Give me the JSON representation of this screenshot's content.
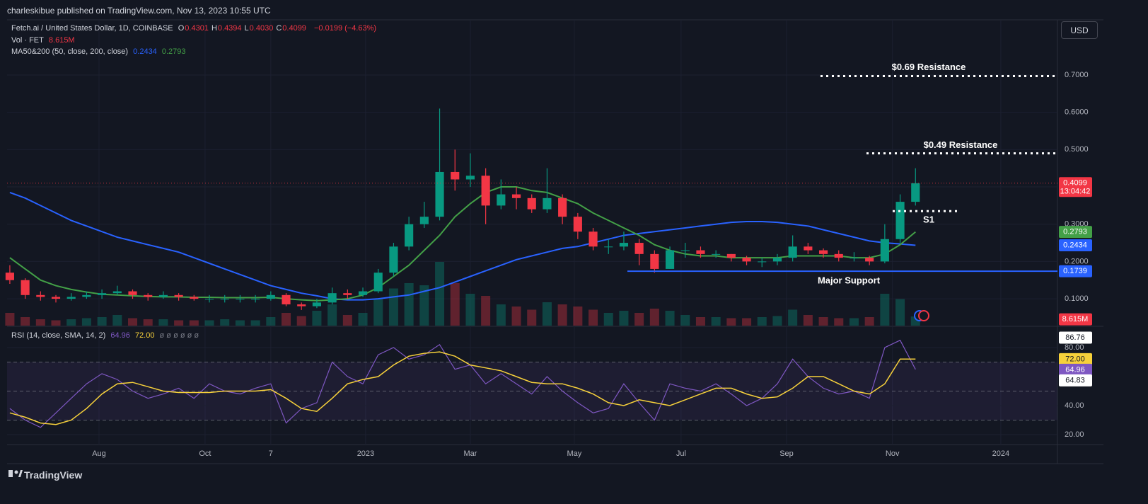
{
  "header": {
    "publisher": "charleskibue published on TradingView.com, Nov 13, 2023 10:55 UTC",
    "currency": "USD",
    "brand": "TradingView"
  },
  "legend": {
    "symbol": "Fetch.ai / United States Dollar, 1D, COINBASE",
    "ohlc": [
      {
        "key": "O",
        "value": "0.4301"
      },
      {
        "key": "H",
        "value": "0.4394"
      },
      {
        "key": "L",
        "value": "0.4030"
      },
      {
        "key": "C",
        "value": "0.4099"
      }
    ],
    "change": "−0.0199 (−4.63%)",
    "volume_label": "Vol · FET",
    "volume_value": "8.615M",
    "ma_label": "MA50&200 (50, close, 200, close)",
    "ma_values": [
      "0.2434",
      "0.2793"
    ],
    "rsi_label": "RSI (14, close, SMA, 14, 2)",
    "rsi_values": [
      "64.96",
      "72.00"
    ],
    "rsi_extra": "ø ø ø ø ø ø"
  },
  "chart_data": [
    {
      "type": "candlestick",
      "open": [
        0.17,
        0.15,
        0.11,
        0.105,
        0.1,
        0.105,
        0.11,
        0.115,
        0.12,
        0.11,
        0.105,
        0.11,
        0.105,
        0.1,
        0.1,
        0.1,
        0.1,
        0.1,
        0.11,
        0.085,
        0.08,
        0.09,
        0.115,
        0.11,
        0.12,
        0.17,
        0.24,
        0.3,
        0.32,
        0.44,
        0.42,
        0.43,
        0.35,
        0.38,
        0.37,
        0.34,
        0.37,
        0.32,
        0.28,
        0.24,
        0.24,
        0.25,
        0.22,
        0.18,
        0.23,
        0.23,
        0.22,
        0.22,
        0.21,
        0.2,
        0.2,
        0.21,
        0.24,
        0.23,
        0.22,
        0.21,
        0.21,
        0.2,
        0.26,
        0.36
      ],
      "high": [
        0.19,
        0.155,
        0.12,
        0.11,
        0.115,
        0.12,
        0.125,
        0.135,
        0.125,
        0.115,
        0.12,
        0.115,
        0.11,
        0.11,
        0.11,
        0.11,
        0.11,
        0.12,
        0.115,
        0.09,
        0.1,
        0.13,
        0.125,
        0.13,
        0.18,
        0.25,
        0.32,
        0.36,
        0.61,
        0.5,
        0.49,
        0.45,
        0.42,
        0.4,
        0.38,
        0.45,
        0.38,
        0.33,
        0.29,
        0.26,
        0.28,
        0.26,
        0.23,
        0.24,
        0.25,
        0.24,
        0.23,
        0.22,
        0.215,
        0.21,
        0.22,
        0.27,
        0.25,
        0.235,
        0.23,
        0.225,
        0.215,
        0.3,
        0.38,
        0.45
      ],
      "low": [
        0.14,
        0.1,
        0.095,
        0.09,
        0.095,
        0.1,
        0.1,
        0.11,
        0.1,
        0.095,
        0.1,
        0.095,
        0.095,
        0.09,
        0.09,
        0.09,
        0.09,
        0.095,
        0.08,
        0.07,
        0.075,
        0.085,
        0.1,
        0.105,
        0.115,
        0.16,
        0.23,
        0.29,
        0.31,
        0.39,
        0.4,
        0.3,
        0.34,
        0.34,
        0.33,
        0.33,
        0.3,
        0.26,
        0.23,
        0.22,
        0.23,
        0.19,
        0.17,
        0.18,
        0.21,
        0.21,
        0.21,
        0.2,
        0.19,
        0.185,
        0.19,
        0.2,
        0.22,
        0.21,
        0.2,
        0.2,
        0.19,
        0.195,
        0.25,
        0.35
      ],
      "close": [
        0.15,
        0.11,
        0.105,
        0.1,
        0.105,
        0.11,
        0.115,
        0.12,
        0.11,
        0.105,
        0.11,
        0.105,
        0.1,
        0.1,
        0.1,
        0.1,
        0.1,
        0.11,
        0.085,
        0.08,
        0.09,
        0.115,
        0.11,
        0.12,
        0.17,
        0.24,
        0.3,
        0.32,
        0.44,
        0.42,
        0.43,
        0.35,
        0.38,
        0.37,
        0.34,
        0.37,
        0.32,
        0.28,
        0.24,
        0.24,
        0.25,
        0.22,
        0.18,
        0.23,
        0.23,
        0.22,
        0.22,
        0.21,
        0.2,
        0.2,
        0.21,
        0.24,
        0.23,
        0.22,
        0.21,
        0.21,
        0.2,
        0.26,
        0.36,
        0.4099
      ],
      "up_color": "#089981",
      "down_color": "#f23645",
      "series": [
        {
          "color": "#2962ff",
          "values": [
            0.385,
            0.37,
            0.35,
            0.33,
            0.31,
            0.295,
            0.28,
            0.265,
            0.255,
            0.245,
            0.235,
            0.225,
            0.21,
            0.195,
            0.18,
            0.165,
            0.15,
            0.135,
            0.125,
            0.115,
            0.108,
            0.1,
            0.097,
            0.097,
            0.1,
            0.105,
            0.11,
            0.12,
            0.13,
            0.145,
            0.16,
            0.175,
            0.19,
            0.205,
            0.215,
            0.225,
            0.235,
            0.24,
            0.25,
            0.26,
            0.27,
            0.275,
            0.28,
            0.285,
            0.29,
            0.295,
            0.3,
            0.305,
            0.307,
            0.307,
            0.305,
            0.3,
            0.295,
            0.285,
            0.275,
            0.265,
            0.255,
            0.25,
            0.247,
            0.2434
          ]
        },
        {
          "color": "#43a047",
          "values": [
            0.21,
            0.18,
            0.15,
            0.135,
            0.125,
            0.118,
            0.112,
            0.11,
            0.108,
            0.106,
            0.105,
            0.105,
            0.104,
            0.104,
            0.103,
            0.103,
            0.103,
            0.104,
            0.1,
            0.097,
            0.095,
            0.097,
            0.1,
            0.11,
            0.13,
            0.16,
            0.19,
            0.23,
            0.27,
            0.32,
            0.355,
            0.385,
            0.4,
            0.4,
            0.39,
            0.385,
            0.37,
            0.355,
            0.33,
            0.31,
            0.29,
            0.27,
            0.245,
            0.23,
            0.22,
            0.215,
            0.215,
            0.21,
            0.21,
            0.21,
            0.21,
            0.215,
            0.215,
            0.215,
            0.215,
            0.21,
            0.21,
            0.22,
            0.245,
            0.2793
          ]
        }
      ],
      "volume": {
        "values": [
          12,
          8,
          6,
          5,
          6,
          7,
          8,
          10,
          7,
          6,
          6,
          5,
          5,
          5,
          6,
          5,
          5,
          8,
          12,
          9,
          14,
          20,
          10,
          12,
          25,
          35,
          40,
          38,
          60,
          40,
          30,
          28,
          20,
          18,
          15,
          22,
          20,
          18,
          15,
          12,
          14,
          12,
          16,
          14,
          10,
          8,
          8,
          7,
          7,
          8,
          9,
          15,
          10,
          8,
          7,
          7,
          8,
          30,
          25,
          8.615
        ],
        "label": "8.615M",
        "color": "#f23645"
      },
      "xlim": [
        -0.18,
        68.25
      ],
      "xticks": [
        {
          "value": 5.81,
          "label": "Aug"
        },
        {
          "value": 12.72,
          "label": "Oct"
        },
        {
          "value": 17.0,
          "label": "7"
        },
        {
          "value": 23.18,
          "label": "2023"
        },
        {
          "value": 30.0,
          "label": "Mar"
        },
        {
          "value": 36.77,
          "label": "May"
        },
        {
          "value": 43.73,
          "label": "Jul"
        },
        {
          "value": 50.6,
          "label": "Sep"
        },
        {
          "value": 57.5,
          "label": "Nov"
        },
        {
          "value": 64.56,
          "label": "2024"
        }
      ],
      "ylim": [
        0.028,
        0.848
      ],
      "yticks": [
        {
          "value": 0.1,
          "label": "0.1000"
        },
        {
          "value": 0.2,
          "label": "0.2000"
        },
        {
          "value": 0.3,
          "label": "0.3000"
        },
        {
          "value": 0.4,
          "label": "0.4000"
        },
        {
          "value": 0.5,
          "label": "0.5000"
        },
        {
          "value": 0.6,
          "label": "0.6000"
        },
        {
          "value": 0.7,
          "label": "0.7000"
        }
      ],
      "grid": true,
      "price_line": true,
      "markers": [
        {
          "value": 0.4099,
          "label": "0.4099",
          "sub": "13:04:42",
          "color": "#f23645"
        },
        {
          "value": 0.2793,
          "label": "0.2793",
          "color": "#43a047"
        },
        {
          "value": 0.2434,
          "label": "0.2434",
          "color": "#2962ff"
        },
        {
          "value": 0.1739,
          "label": "0.1739",
          "color": "#2962ff"
        }
      ],
      "annotations": [
        {
          "text": "$0.69 Resistance",
          "value": 0.697,
          "style": "dotted"
        },
        {
          "text": "$0.49 Resistance",
          "value": 0.49,
          "style": "dotted"
        },
        {
          "text": "S1",
          "value": 0.335,
          "style": "dotted"
        },
        {
          "text": "Major Support",
          "value": 0.1739,
          "style": "solid"
        }
      ]
    },
    {
      "type": "line",
      "series": [
        {
          "color": "#7e57c2",
          "values": [
            38,
            30,
            25,
            35,
            45,
            55,
            62,
            58,
            50,
            45,
            48,
            52,
            45,
            55,
            50,
            48,
            52,
            55,
            28,
            38,
            42,
            70,
            60,
            55,
            75,
            80,
            72,
            75,
            82,
            65,
            68,
            55,
            62,
            55,
            48,
            60,
            50,
            42,
            35,
            38,
            55,
            42,
            30,
            55,
            52,
            50,
            55,
            48,
            40,
            45,
            55,
            72,
            60,
            52,
            48,
            50,
            45,
            80,
            85,
            64.96
          ]
        },
        {
          "color": "#f7d13b",
          "values": [
            35,
            32,
            28,
            27,
            30,
            38,
            48,
            55,
            56,
            53,
            50,
            49,
            49,
            49,
            50,
            50,
            50,
            51,
            45,
            38,
            36,
            45,
            55,
            58,
            60,
            68,
            74,
            76,
            77,
            74,
            68,
            66,
            64,
            60,
            56,
            55,
            55,
            52,
            48,
            42,
            40,
            44,
            42,
            40,
            44,
            48,
            52,
            52,
            48,
            45,
            46,
            52,
            60,
            60,
            55,
            50,
            48,
            55,
            72,
            72
          ]
        }
      ],
      "xlim": [
        -0.18,
        68.25
      ],
      "ylim": [
        13.2,
        94.1
      ],
      "yticks": [
        {
          "value": 20,
          "label": "20.00"
        },
        {
          "value": 40,
          "label": "40.00"
        },
        {
          "value": 80,
          "label": "80.00"
        }
      ],
      "levels": [
        70,
        50,
        30
      ],
      "markers": [
        {
          "value": 86.76,
          "label": "86.76",
          "color": "#ffffff",
          "text_color": "#131722"
        },
        {
          "value": 72,
          "label": "72.00",
          "color": "#f7d13b",
          "text_color": "#131722"
        },
        {
          "value": 64.96,
          "label": "64.96",
          "color": "#7e57c2",
          "text_color": "#ffffff"
        },
        {
          "value": 64.83,
          "label": "64.83",
          "color": "#ffffff",
          "text_color": "#131722"
        }
      ]
    }
  ]
}
